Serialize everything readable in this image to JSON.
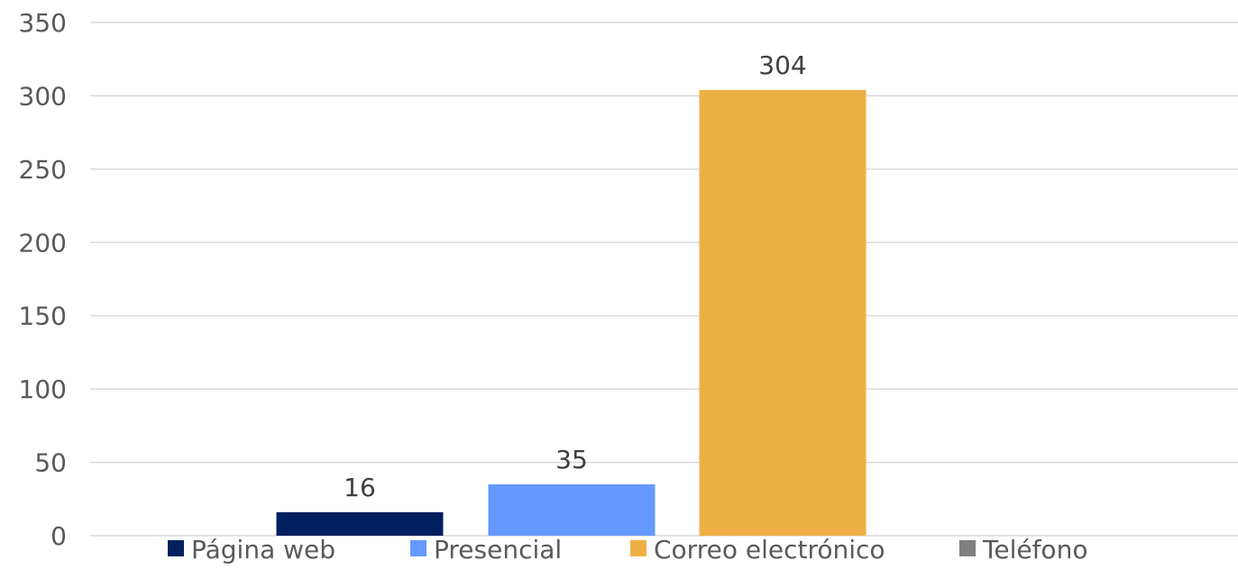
{
  "chart_data": {
    "type": "bar",
    "categories": [
      ""
    ],
    "series": [
      {
        "name": "Página web",
        "values": [
          16
        ],
        "color": "#002060"
      },
      {
        "name": "Presencial",
        "values": [
          35
        ],
        "color": "#6699ff"
      },
      {
        "name": "Correo electrónico",
        "values": [
          304
        ],
        "color": "#eeb044"
      },
      {
        "name": "Teléfono",
        "values": [
          0
        ],
        "color": "#808080"
      }
    ],
    "data_labels": [
      "16",
      "35",
      "304",
      ""
    ],
    "title": "",
    "xlabel": "",
    "ylabel": "",
    "ylim": [
      0,
      350
    ],
    "yticks": [
      0,
      50,
      100,
      150,
      200,
      250,
      300,
      350
    ],
    "grid": true,
    "legend_position": "bottom"
  }
}
